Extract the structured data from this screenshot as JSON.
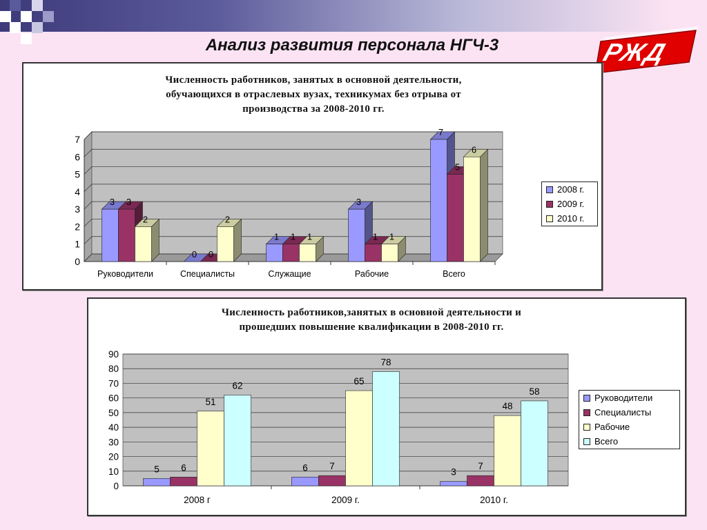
{
  "page": {
    "title": "Анализ развития персонала НГЧ-3",
    "logo_text": "РЖД"
  },
  "colors": {
    "series_2008": "#9999ff",
    "series_2009": "#993366",
    "series_2010": "#ffffcc",
    "series_total": "#ccffff",
    "wall": "#c0c0c0"
  },
  "chart_data": [
    {
      "type": "bar",
      "style": "3d-clustered",
      "title": "Численность работников, занятых в основной деятельности,\nобучающихся в отраслевых вузах, техникумах без отрыва от\nпроизводства за 2008-2010 гг.",
      "categories": [
        "Руководители",
        "Специалисты",
        "Служащие",
        "Рабочие",
        "Всего"
      ],
      "series": [
        {
          "name": "2008 г.",
          "values": [
            3,
            0,
            1,
            3,
            7
          ]
        },
        {
          "name": "2009 г.",
          "values": [
            3,
            0,
            1,
            1,
            5
          ]
        },
        {
          "name": "2010 г.",
          "values": [
            2,
            2,
            1,
            1,
            6
          ]
        }
      ],
      "yticks": [
        "0",
        "1",
        "2",
        "3",
        "4",
        "5",
        "6",
        "7"
      ],
      "ylim": [
        0,
        7
      ],
      "grid": true,
      "legend": "right"
    },
    {
      "type": "bar",
      "style": "clustered",
      "title": "Численность работников,занятых в основной деятельности и\nпрошедших повышение квалификации в 2008-2010 гг.",
      "categories": [
        "2008 г",
        "2009 г.",
        "2010 г."
      ],
      "series": [
        {
          "name": "Руководители",
          "values": [
            5,
            6,
            3
          ]
        },
        {
          "name": "Специалисты",
          "values": [
            6,
            7,
            7
          ]
        },
        {
          "name": "Рабочие",
          "values": [
            51,
            65,
            48
          ]
        },
        {
          "name": "Всего",
          "values": [
            62,
            78,
            58
          ]
        }
      ],
      "yticks": [
        "0",
        "10",
        "20",
        "30",
        "40",
        "50",
        "60",
        "70",
        "80",
        "90"
      ],
      "ylim": [
        0,
        90
      ],
      "grid": true,
      "legend": "right"
    }
  ]
}
